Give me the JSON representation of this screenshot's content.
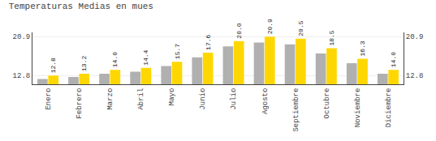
{
  "chart_data": {
    "type": "bar",
    "title": "Temperaturas Medias en mues",
    "categories": [
      "Enero",
      "Febrero",
      "Marzo",
      "Abril",
      "Mayo",
      "Junio",
      "Julio",
      "Agosto",
      "Septiembre",
      "Octubre",
      "Noviembre",
      "Diciembre"
    ],
    "series": [
      {
        "color": "#B0B0B0",
        "values": [
          12.1,
          12.5,
          13.2,
          13.6,
          14.8,
          16.6,
          18.9,
          19.7,
          19.3,
          17.4,
          15.4,
          13.2
        ]
      },
      {
        "color": "#FFD700",
        "values": [
          12.8,
          13.2,
          14.0,
          14.4,
          15.7,
          17.6,
          20.0,
          20.9,
          20.5,
          18.5,
          16.3,
          14.0
        ],
        "data_labels": true,
        "value_labels": [
          "12.8",
          "13.2",
          "14.0",
          "14.4",
          "15.7",
          "17.6",
          "20.0",
          "20.9",
          "20.5",
          "18.5",
          "16.3",
          "14.0"
        ]
      }
    ],
    "ylim": [
      11.0,
      21.8
    ],
    "yticks": [
      12.8,
      20.9
    ],
    "y2lim": [
      11.0,
      21.8
    ],
    "y2ticks": [
      12.8,
      20.9
    ],
    "grid": true
  }
}
